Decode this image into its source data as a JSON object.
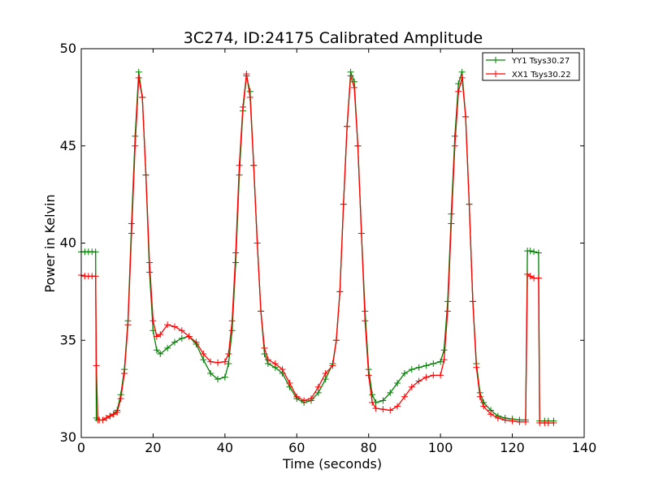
{
  "chart_data": {
    "type": "line",
    "title": "3C274, ID:24175 Calibrated Amplitude",
    "xlabel": "Time (seconds)",
    "ylabel": "Power in Kelvin",
    "xlim": [
      0,
      140
    ],
    "ylim": [
      30,
      50
    ],
    "xticks": [
      "0",
      "20",
      "40",
      "60",
      "80",
      "100",
      "120",
      "140"
    ],
    "yticks": [
      "30",
      "35",
      "40",
      "45",
      "50"
    ],
    "grid": false,
    "legend_position": "top-right",
    "marker": "plus",
    "series": [
      {
        "name": "YY1 Tsys30.27",
        "color": "#008000",
        "points": [
          [
            0,
            39.55
          ],
          [
            1,
            39.55
          ],
          [
            2,
            39.55
          ],
          [
            3,
            39.55
          ],
          [
            4,
            39.55
          ],
          [
            4.2,
            31.0
          ],
          [
            5,
            30.9
          ],
          [
            6,
            30.9
          ],
          [
            7,
            31.0
          ],
          [
            8,
            31.1
          ],
          [
            9,
            31.2
          ],
          [
            10,
            31.4
          ],
          [
            11,
            32.2
          ],
          [
            12,
            33.5
          ],
          [
            13,
            36.0
          ],
          [
            14,
            41.0
          ],
          [
            15,
            45.5
          ],
          [
            16,
            48.8
          ],
          [
            17,
            47.5
          ],
          [
            18,
            43.5
          ],
          [
            19,
            38.5
          ],
          [
            20,
            35.5
          ],
          [
            21,
            34.5
          ],
          [
            22,
            34.3
          ],
          [
            24,
            34.6
          ],
          [
            26,
            34.9
          ],
          [
            28,
            35.1
          ],
          [
            30,
            35.2
          ],
          [
            32,
            34.8
          ],
          [
            34,
            34.0
          ],
          [
            36,
            33.3
          ],
          [
            38,
            33.0
          ],
          [
            40,
            33.1
          ],
          [
            41,
            33.8
          ],
          [
            42,
            35.5
          ],
          [
            43,
            39.0
          ],
          [
            44,
            43.5
          ],
          [
            45,
            46.8
          ],
          [
            46,
            48.6
          ],
          [
            47,
            47.8
          ],
          [
            48,
            44.0
          ],
          [
            49,
            40.0
          ],
          [
            50,
            36.5
          ],
          [
            51,
            34.3
          ],
          [
            52,
            33.8
          ],
          [
            54,
            33.6
          ],
          [
            56,
            33.3
          ],
          [
            58,
            32.6
          ],
          [
            60,
            32.0
          ],
          [
            62,
            31.8
          ],
          [
            64,
            31.9
          ],
          [
            66,
            32.3
          ],
          [
            68,
            33.0
          ],
          [
            70,
            33.8
          ],
          [
            71,
            35.0
          ],
          [
            72,
            37.5
          ],
          [
            73,
            42.0
          ],
          [
            74,
            46.0
          ],
          [
            75,
            48.8
          ],
          [
            76,
            48.3
          ],
          [
            77,
            45.0
          ],
          [
            78,
            40.5
          ],
          [
            79,
            36.5
          ],
          [
            80,
            33.5
          ],
          [
            81,
            32.2
          ],
          [
            82,
            31.8
          ],
          [
            84,
            31.9
          ],
          [
            86,
            32.3
          ],
          [
            88,
            32.8
          ],
          [
            90,
            33.3
          ],
          [
            92,
            33.5
          ],
          [
            94,
            33.6
          ],
          [
            96,
            33.7
          ],
          [
            98,
            33.8
          ],
          [
            100,
            33.9
          ],
          [
            101,
            34.5
          ],
          [
            102,
            37.0
          ],
          [
            103,
            41.5
          ],
          [
            104,
            45.5
          ],
          [
            105,
            48.2
          ],
          [
            106,
            48.8
          ],
          [
            107,
            46.5
          ],
          [
            108,
            42.0
          ],
          [
            109,
            37.0
          ],
          [
            110,
            33.8
          ],
          [
            111,
            32.3
          ],
          [
            112,
            31.8
          ],
          [
            114,
            31.4
          ],
          [
            116,
            31.1
          ],
          [
            118,
            31.0
          ],
          [
            120,
            30.95
          ],
          [
            122,
            30.9
          ],
          [
            123.7,
            30.9
          ],
          [
            124.2,
            39.6
          ],
          [
            125,
            39.6
          ],
          [
            126,
            39.55
          ],
          [
            127.3,
            39.5
          ],
          [
            127.6,
            30.85
          ],
          [
            129,
            30.85
          ],
          [
            130,
            30.85
          ],
          [
            131.5,
            30.85
          ]
        ]
      },
      {
        "name": "XX1 Tsys30.22",
        "color": "#ff0000",
        "points": [
          [
            0,
            38.35
          ],
          [
            1,
            38.3
          ],
          [
            2,
            38.3
          ],
          [
            3,
            38.3
          ],
          [
            4,
            38.3
          ],
          [
            4.2,
            33.7
          ],
          [
            4.6,
            30.9
          ],
          [
            5,
            30.9
          ],
          [
            6,
            30.9
          ],
          [
            7,
            31.0
          ],
          [
            8,
            31.1
          ],
          [
            9,
            31.2
          ],
          [
            10,
            31.3
          ],
          [
            11,
            32.0
          ],
          [
            12,
            33.3
          ],
          [
            13,
            35.8
          ],
          [
            14,
            40.5
          ],
          [
            15,
            45.0
          ],
          [
            16,
            48.5
          ],
          [
            17,
            47.5
          ],
          [
            18,
            43.5
          ],
          [
            19,
            39.0
          ],
          [
            20,
            36.0
          ],
          [
            21,
            35.2
          ],
          [
            22,
            35.3
          ],
          [
            24,
            35.8
          ],
          [
            26,
            35.7
          ],
          [
            28,
            35.5
          ],
          [
            30,
            35.2
          ],
          [
            32,
            34.9
          ],
          [
            34,
            34.3
          ],
          [
            36,
            33.9
          ],
          [
            38,
            33.85
          ],
          [
            40,
            33.9
          ],
          [
            41,
            34.3
          ],
          [
            42,
            36.0
          ],
          [
            43,
            39.5
          ],
          [
            44,
            44.0
          ],
          [
            45,
            47.0
          ],
          [
            46,
            48.7
          ],
          [
            47,
            47.5
          ],
          [
            48,
            44.0
          ],
          [
            49,
            40.0
          ],
          [
            50,
            36.5
          ],
          [
            51,
            34.6
          ],
          [
            52,
            34.0
          ],
          [
            54,
            33.8
          ],
          [
            56,
            33.5
          ],
          [
            58,
            32.8
          ],
          [
            60,
            32.1
          ],
          [
            62,
            31.9
          ],
          [
            64,
            32.0
          ],
          [
            66,
            32.6
          ],
          [
            68,
            33.3
          ],
          [
            70,
            33.7
          ],
          [
            71,
            35.0
          ],
          [
            72,
            37.5
          ],
          [
            73,
            42.0
          ],
          [
            74,
            46.0
          ],
          [
            75,
            48.6
          ],
          [
            76,
            48.0
          ],
          [
            77,
            45.0
          ],
          [
            78,
            40.5
          ],
          [
            79,
            36.0
          ],
          [
            80,
            33.2
          ],
          [
            81,
            31.8
          ],
          [
            82,
            31.5
          ],
          [
            84,
            31.45
          ],
          [
            86,
            31.4
          ],
          [
            88,
            31.6
          ],
          [
            90,
            32.1
          ],
          [
            92,
            32.6
          ],
          [
            94,
            32.9
          ],
          [
            96,
            33.1
          ],
          [
            98,
            33.2
          ],
          [
            100,
            33.2
          ],
          [
            101,
            34.0
          ],
          [
            102,
            36.5
          ],
          [
            103,
            41.0
          ],
          [
            104,
            45.0
          ],
          [
            105,
            47.8
          ],
          [
            106,
            48.5
          ],
          [
            107,
            46.5
          ],
          [
            108,
            42.0
          ],
          [
            109,
            37.0
          ],
          [
            110,
            33.6
          ],
          [
            111,
            32.1
          ],
          [
            112,
            31.6
          ],
          [
            114,
            31.2
          ],
          [
            116,
            31.0
          ],
          [
            118,
            30.9
          ],
          [
            120,
            30.85
          ],
          [
            122,
            30.8
          ],
          [
            123.7,
            30.8
          ],
          [
            124.2,
            38.4
          ],
          [
            125,
            38.3
          ],
          [
            126,
            38.2
          ],
          [
            127.3,
            38.2
          ],
          [
            127.6,
            30.75
          ],
          [
            129,
            30.75
          ],
          [
            130,
            30.75
          ],
          [
            131.5,
            30.75
          ]
        ]
      }
    ]
  }
}
